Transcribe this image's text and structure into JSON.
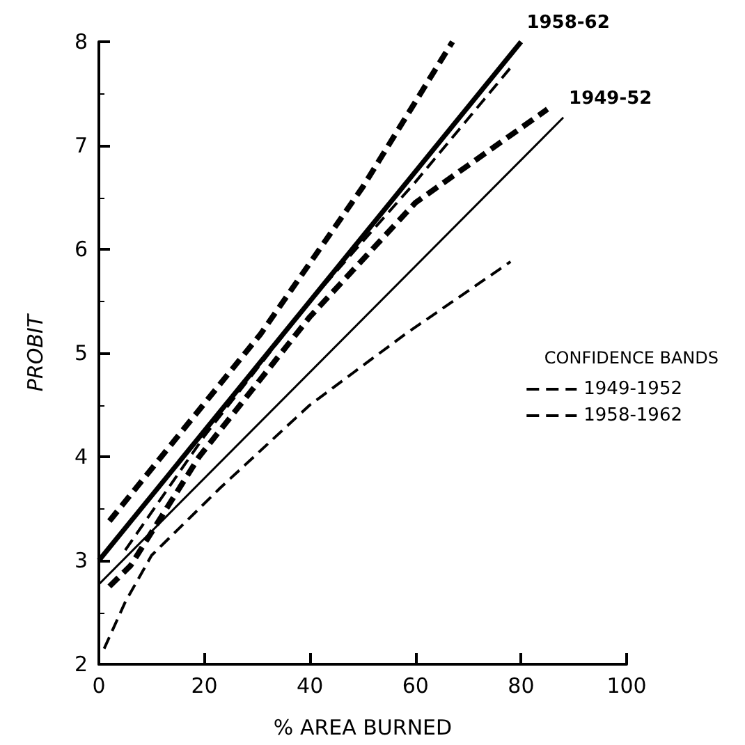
{
  "chart_data": {
    "type": "line",
    "xlabel": "% AREA BURNED",
    "ylabel": "PROBIT",
    "legend_title": "CONFIDENCE BANDS",
    "xlim": [
      0,
      100
    ],
    "xticks": [
      0,
      20,
      40,
      60,
      80,
      100
    ],
    "ylim": [
      2,
      8
    ],
    "yticks": [
      2,
      3,
      4,
      5,
      6,
      7,
      8
    ],
    "grid": false,
    "legend": "right",
    "marker": "none",
    "annotations": [
      {
        "text": "1958-62",
        "x": 80,
        "y": 8
      },
      {
        "text": "1949-52",
        "x": 88,
        "y": 7.27
      }
    ],
    "series": [
      {
        "color": "#000000",
        "line_style": "solid",
        "x": [
          0,
          80
        ],
        "values": [
          3.0,
          8.0
        ]
      },
      {
        "color": "#000000",
        "line_style": "solid",
        "x": [
          0,
          88
        ],
        "values": [
          2.77,
          7.27
        ]
      },
      {
        "name": "1949-1952",
        "color": "#000000",
        "line_style": "dashed",
        "x": [
          5,
          20,
          40,
          60,
          78
        ],
        "values": [
          3.1,
          4.2,
          5.5,
          6.65,
          7.75
        ]
      },
      {
        "color": "#000000",
        "line_style": "dashed",
        "x": [
          1,
          5,
          10,
          23,
          40,
          58,
          78
        ],
        "values": [
          2.15,
          2.6,
          3.05,
          3.7,
          4.5,
          5.18,
          5.88
        ]
      },
      {
        "name": "1958-1962",
        "color": "#000000",
        "line_style": "dashed",
        "x": [
          2,
          15,
          30.6,
          50,
          67
        ],
        "values": [
          3.38,
          4.2,
          5.18,
          6.6,
          8.0
        ]
      },
      {
        "color": "#000000",
        "line_style": "dashed",
        "x": [
          2,
          6,
          19,
          40,
          60,
          85
        ],
        "values": [
          2.75,
          2.95,
          4.0,
          5.35,
          6.45,
          7.35
        ]
      }
    ]
  }
}
